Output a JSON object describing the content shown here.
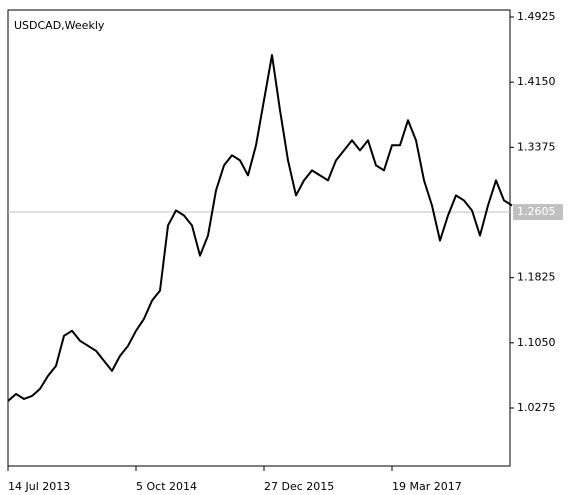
{
  "chart_data": {
    "type": "line",
    "title": "USDCAD,Weekly",
    "categories": [
      "14 Jul 2013",
      null,
      null,
      null,
      null,
      null,
      null,
      null,
      null,
      null,
      null,
      null,
      null,
      null,
      null,
      null,
      "5 Oct 2014",
      null,
      null,
      null,
      null,
      null,
      null,
      null,
      null,
      null,
      null,
      null,
      null,
      null,
      null,
      null,
      "27 Dec 2015",
      null,
      null,
      null,
      null,
      null,
      null,
      null,
      null,
      null,
      null,
      null,
      null,
      null,
      null,
      null,
      "19 Mar 2017",
      null,
      null,
      null,
      null,
      null,
      null,
      null,
      null,
      null,
      null,
      null,
      null,
      null,
      null,
      null
    ],
    "series": [
      {
        "name": "USDCAD",
        "color": "#000000",
        "values": [
          1.0358,
          1.0442,
          1.0382,
          1.0418,
          1.0502,
          1.0657,
          1.0776,
          1.1133,
          1.1193,
          1.1074,
          1.1014,
          1.0955,
          1.0835,
          1.0716,
          1.0895,
          1.1014,
          1.1193,
          1.1336,
          1.1551,
          1.167,
          1.2445,
          1.2624,
          1.2564,
          1.2445,
          1.2087,
          1.2326,
          1.2862,
          1.316,
          1.328,
          1.322,
          1.3041,
          1.3399,
          1.3935,
          1.4472,
          1.3816,
          1.322,
          1.2803,
          1.2982,
          1.3101,
          1.3041,
          1.2982,
          1.322,
          1.3339,
          1.3458,
          1.3339,
          1.3458,
          1.316,
          1.3101,
          1.3399,
          1.3399,
          1.3697,
          1.3458,
          1.2982,
          1.2683,
          1.2266,
          1.2564,
          1.2803,
          1.2743,
          1.2624,
          1.2326,
          1.2683,
          1.2982,
          1.2743,
          1.2683
        ]
      }
    ],
    "ylim": [
      0.9585,
      1.5008
    ],
    "yticks": [
      1.4925,
      {
        "value": 1.415,
        "label": "1.4150"
      },
      1.3375,
      1.1825,
      {
        "value": 1.105,
        "label": "1.1050"
      },
      1.0275
    ],
    "last_price": 1.2605,
    "grid": false
  }
}
